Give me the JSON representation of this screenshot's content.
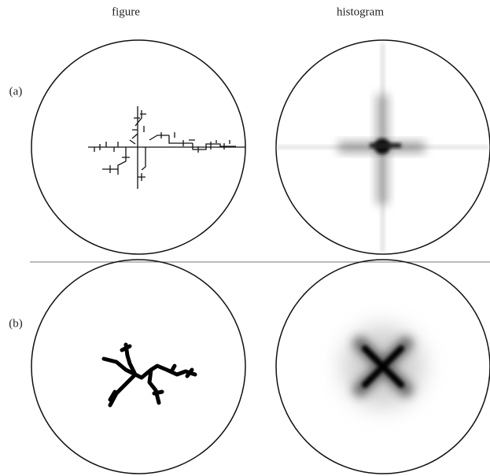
{
  "header": {
    "columns": [
      "figure",
      "histogram"
    ]
  },
  "rows": [
    {
      "label": "(a)"
    },
    {
      "label": "(b)"
    }
  ]
}
